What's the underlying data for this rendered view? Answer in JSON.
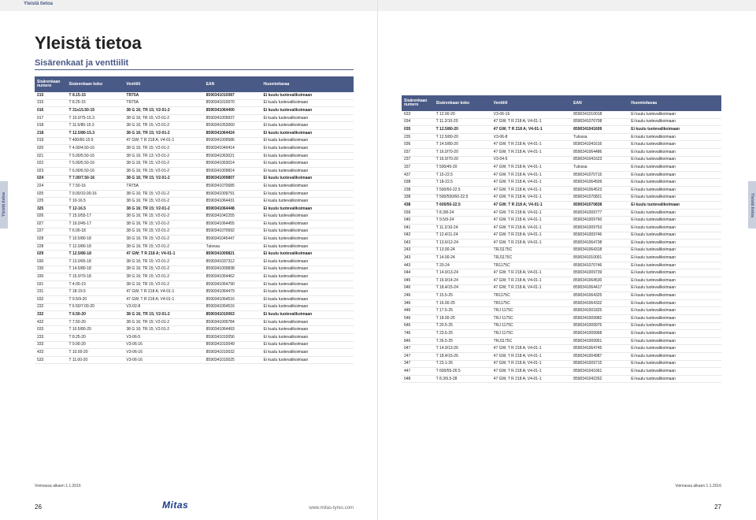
{
  "meta": {
    "topbar": "Yleistä tietoa",
    "title": "Yleistä tietoa",
    "subtitle": "Sisärenkaat ja venttiilit",
    "side_tab": "Yleistä tietoa",
    "validity": "Voimassa alkaen 1.1.2016",
    "url": "www.mitas-tyres.com",
    "logo": "Mitas",
    "page_left": "26",
    "page_right": "27",
    "colors": {
      "header_bg": "#4a5a86",
      "header_fg": "#ffffff",
      "row_border": "#e8e8e8",
      "topbar_bg": "#f0f0f0",
      "accent": "#4a5a86",
      "side_tab_bg": "#c9cfdd"
    }
  },
  "table": {
    "columns": [
      "Sisärenkaan numero",
      "Sisärenkaan koko",
      "Venttiili",
      "EAN",
      "Huomioitavaa"
    ],
    "col_widths_pct": [
      10,
      18,
      25,
      18,
      29
    ]
  },
  "left_rows": [
    {
      "b": 1,
      "c": [
        "215",
        "T 8.15-15",
        "TR75A",
        "8590341010087",
        "Ei kuulu tuotevalikoimaan"
      ]
    },
    {
      "b": 0,
      "c": [
        "315",
        "T 8.25-15",
        "TR75A",
        "8590341010070",
        "Ei kuulu tuotevalikoimaan"
      ]
    },
    {
      "b": 1,
      "c": [
        "016",
        "T 31x15.50-15",
        "38 G 16; TR 15;      V2-01-2",
        "8590341064400",
        "Ei kuulu tuotevalikoimaan"
      ]
    },
    {
      "b": 0,
      "c": [
        "017",
        "T 10.0/75-15.3",
        "38 G 16; TR 15;      V2-01-2",
        "8590341009937",
        "Ei kuulu tuotevalikoimaan"
      ]
    },
    {
      "b": 0,
      "c": [
        "018",
        "T 11.5/80-15.3",
        "38 G 16; TR 15;      V2-01-2",
        "8590341053060",
        "Ei kuulu tuotevalikoimaan"
      ]
    },
    {
      "b": 1,
      "c": [
        "218",
        "T 12.5/80-15.3",
        "38 G 16; TR 15;      V2-01-2",
        "8590341064424",
        "Ei kuulu tuotevalikoimaan"
      ]
    },
    {
      "b": 0,
      "c": [
        "019",
        "T 400/60-15.5",
        "47 GW; T R 218 A;    V4-01-1",
        "8590341009586",
        "Ei kuulu tuotevalikoimaan"
      ]
    },
    {
      "b": 0,
      "c": [
        "020",
        "T 4.00/4.50-16",
        "38 G 16; TR 15;      V2-01-2",
        "8590341049414",
        "Ei kuulu tuotevalikoimaan"
      ]
    },
    {
      "b": 0,
      "c": [
        "021",
        "T 5.00/5.50-16",
        "38 G 16; TR 13;      V2-01-2",
        "8590341063021",
        "Ei kuulu tuotevalikoimaan"
      ]
    },
    {
      "b": 0,
      "c": [
        "022",
        "T 5.00/5.50-16",
        "38 G 16; TR 15;      V2-01-2",
        "8590341063014",
        "Ei kuulu tuotevalikoimaan"
      ]
    },
    {
      "b": 0,
      "c": [
        "023",
        "T 6.00/6.50-16",
        "38 G 16; TR 15;      V2-01-2",
        "8590341009814",
        "Ei kuulu tuotevalikoimaan"
      ]
    },
    {
      "b": 1,
      "c": [
        "024",
        "T 7.00/7.50-16",
        "38 G 16; TR 15;      V2-01-2",
        "8590341009807",
        "Ei kuulu tuotevalikoimaan"
      ]
    },
    {
      "b": 0,
      "c": [
        "224",
        "T 7.50-16",
        "TR75A",
        "8590341070685",
        "Ei kuulu tuotevalikoimaan"
      ]
    },
    {
      "b": 0,
      "c": [
        "025",
        "T 9.00/10.00-16",
        "38 G 16; TR 15;      V2-01-2",
        "8590341009791",
        "Ei kuulu tuotevalikoimaan"
      ]
    },
    {
      "b": 0,
      "c": [
        "225",
        "T 10-16.5",
        "38 G 16; TR 15;      V2-01-2",
        "8590341064431",
        "Ei kuulu tuotevalikoimaan"
      ]
    },
    {
      "b": 1,
      "c": [
        "325",
        "T 12-16.5",
        "38 G 16; TR 15;      V2-01-2",
        "8590341064448",
        "Ei kuulu tuotevalikoimaan"
      ]
    },
    {
      "b": 0,
      "c": [
        "026",
        "T 15.0/55-17",
        "38 G 16; TR 15;      V2-01-2",
        "8590341042255",
        "Ei kuulu tuotevalikoimaan"
      ]
    },
    {
      "b": 0,
      "c": [
        "027",
        "T 19.0/45-17",
        "38 G 16; TR 15;      V2-01-2",
        "8590341064455",
        "Ei kuulu tuotevalikoimaan"
      ]
    },
    {
      "b": 0,
      "c": [
        "227",
        "T 6.00-18",
        "38 G 16; TR 15;      V2-01-2",
        "8590341070692",
        "Ei kuulu tuotevalikoimaan"
      ]
    },
    {
      "b": 0,
      "c": [
        "028",
        "T 10.5/80-18",
        "38 G 16; TR 15;      V2-01-2",
        "8590341045447",
        "Ei kuulu tuotevalikoimaan"
      ]
    },
    {
      "b": 0,
      "c": [
        "228",
        "T 12.0/80-18",
        "38 G 16; TR 15;      V2-01-2",
        "Tulossa",
        "Ei kuulu tuotevalikoimaan"
      ]
    },
    {
      "b": 1,
      "c": [
        "029",
        "T 12.5/80-18",
        "47 GW; T R 218 A;    V4-01-1",
        "8590341009821",
        "Ei kuulu tuotevalikoimaan"
      ]
    },
    {
      "b": 0,
      "c": [
        "030",
        "T 13.0/65-18",
        "38 G 16; TR 15;      V2-01-2",
        "8590341037312",
        "Ei kuulu tuotevalikoimaan"
      ]
    },
    {
      "b": 0,
      "c": [
        "230",
        "T 14.5/80-18",
        "38 G 16; TR 15;      V2-01-2",
        "8590341009838",
        "Ei kuulu tuotevalikoimaan"
      ]
    },
    {
      "b": 0,
      "c": [
        "330",
        "T 15.0/70-18",
        "38 G 16; TR 15;      V2-01-2",
        "8590341064462",
        "Ei kuulu tuotevalikoimaan"
      ]
    },
    {
      "b": 0,
      "c": [
        "031",
        "T 4.00-19",
        "38 G 16; TR 15;      V2-01-2",
        "8590341064790",
        "Ei kuulu tuotevalikoimaan"
      ]
    },
    {
      "b": 0,
      "c": [
        "231",
        "T 18-19.5",
        "47 GW; T R 218 A;    V4-01-1",
        "8590341064479",
        "Ei kuulu tuotevalikoimaan"
      ]
    },
    {
      "b": 0,
      "c": [
        "032",
        "T 9.5/9-20",
        "47 GW; T R 218 A;    V4-01-1",
        "8590341064516",
        "Ei kuulu tuotevalikoimaan"
      ]
    },
    {
      "b": 0,
      "c": [
        "232",
        "T 6.50/7.00-20",
        "V3-02-8",
        "8590341064516",
        "Ei kuulu tuotevalikoimaan"
      ]
    },
    {
      "b": 1,
      "c": [
        "332",
        "T 6.50-20",
        "38 G 16; TR 15;      V2-01-2",
        "8590341010063",
        "Ei kuulu tuotevalikoimaan"
      ]
    },
    {
      "b": 0,
      "c": [
        "432",
        "T 7.50-20",
        "38 G 16; TR 15;      V2-01-2",
        "8590341009784",
        "Ei kuulu tuotevalikoimaan"
      ]
    },
    {
      "b": 0,
      "c": [
        "033",
        "T 10.5/80-20",
        "38 G 16; TR 15;      V2-01-2",
        "8590341064493",
        "Ei kuulu tuotevalikoimaan"
      ]
    },
    {
      "b": 0,
      "c": [
        "233",
        "T 8.25-20",
        "V3-06-5",
        "8590341010056",
        "Ei kuulu tuotevalikoimaan"
      ]
    },
    {
      "b": 0,
      "c": [
        "333",
        "T 9.00-20",
        "V3-06-16",
        "8590341010049",
        "Ei kuulu tuotevalikoimaan"
      ]
    },
    {
      "b": 0,
      "c": [
        "433",
        "T 10.00-20",
        "V3-06-16",
        "8590341010032",
        "Ei kuulu tuotevalikoimaan"
      ]
    },
    {
      "b": 0,
      "c": [
        "533",
        "T 11.00-20",
        "V3-06-16",
        "8590341010025",
        "Ei kuulu tuotevalikoimaan"
      ]
    }
  ],
  "right_rows": [
    {
      "b": 0,
      "c": [
        "633",
        "T 12.00-20",
        "V3-06-16",
        "8590341010018",
        "Ei kuulu tuotevalikoimaan"
      ]
    },
    {
      "b": 0,
      "c": [
        "034",
        "T 11.2/10-20",
        "47 GW; T R 218 A;    V4-01-1",
        "8590341070708",
        "Ei kuulu tuotevalikoimaan"
      ]
    },
    {
      "b": 1,
      "c": [
        "035",
        "T 12.5/80-20",
        "47 GW; T R 218 A;    V4-01-1",
        "8590341041609",
        "Ei kuulu tuotevalikoimaan"
      ]
    },
    {
      "b": 0,
      "c": [
        "235",
        "T 12.5/80-20",
        "V3-06-8",
        "Tulossa",
        "Ei kuulu tuotevalikoimaan"
      ]
    },
    {
      "b": 0,
      "c": [
        "036",
        "T 14.5/80-20",
        "47 GW; T R 218 A;    V4-01-1",
        "8590341041616",
        "Ei kuulu tuotevalikoimaan"
      ]
    },
    {
      "b": 0,
      "c": [
        "037",
        "T 16.0/70-20",
        "47 GW; T R 218 A;    V4-01-1",
        "8590341064486",
        "Ei kuulu tuotevalikoimaan"
      ]
    },
    {
      "b": 0,
      "c": [
        "237",
        "T 16.0/70-20",
        "V3-04-5",
        "8590341041623",
        "Ei kuulu tuotevalikoimaan"
      ]
    },
    {
      "b": 0,
      "c": [
        "337",
        "T 500/45-20",
        "47 GW; T R 218 A;    V4-01-1",
        "Tulossa",
        "Ei kuulu tuotevalikoimaan"
      ]
    },
    {
      "b": 0,
      "c": [
        "437",
        "T 15-22.5",
        "47 GW; T R 218 A;    V4-01-1",
        "8590341070715",
        "Ei kuulu tuotevalikoimaan"
      ]
    },
    {
      "b": 0,
      "c": [
        "038",
        "T 18-22.5",
        "47 GW; T R 218 A;    V4-01-1",
        "8590341064509",
        "Ei kuulu tuotevalikoimaan"
      ]
    },
    {
      "b": 0,
      "c": [
        "238",
        "T 500/60-22.5",
        "47 GW; T R 218 A;    V4-01-1",
        "8590341064523",
        "Ei kuulu tuotevalikoimaan"
      ]
    },
    {
      "b": 0,
      "c": [
        "338",
        "T 500/550/60-22.5",
        "47 GW; T R 218 A;    V4-01-1",
        "8590341070821",
        "Ei kuulu tuotevalikoimaan"
      ]
    },
    {
      "b": 1,
      "c": [
        "438",
        "T 600/50-22.5",
        "47 GW; T R 218 A;    V4-01-1",
        "8590341070838",
        "Ei kuulu tuotevalikoimaan"
      ]
    },
    {
      "b": 0,
      "c": [
        "039",
        "T 8.3/8-24",
        "47 GW; T R 218 A;    V4-01-1",
        "8590341009777",
        "Ei kuulu tuotevalikoimaan"
      ]
    },
    {
      "b": 0,
      "c": [
        "040",
        "T 9.5/9-24",
        "47 GW; T R 218 A;    V4-01-1",
        "8590341009760",
        "Ei kuulu tuotevalikoimaan"
      ]
    },
    {
      "b": 0,
      "c": [
        "041",
        "T 11.2/10-24",
        "47 GW; T R 218 A;    V4-01-1",
        "8590341009753",
        "Ei kuulu tuotevalikoimaan"
      ]
    },
    {
      "b": 0,
      "c": [
        "042",
        "T 12.4/11-24",
        "47 GW; T R 218 A;    V4-01-1",
        "8590341009746",
        "Ei kuulu tuotevalikoimaan"
      ]
    },
    {
      "b": 0,
      "c": [
        "043",
        "T 13.6/12-24",
        "47 GW; T R 218 A;    V4-01-1",
        "8590341064738",
        "Ei kuulu tuotevalikoimaan"
      ]
    },
    {
      "b": 0,
      "c": [
        "243",
        "T 13.00-24",
        "TRJ1175C",
        "8590341064318",
        "Ei kuulu tuotevalikoimaan"
      ]
    },
    {
      "b": 0,
      "c": [
        "343",
        "T 14.00-24",
        "TRJ1175C",
        "8590341010001",
        "Ei kuulu tuotevalikoimaan"
      ]
    },
    {
      "b": 0,
      "c": [
        "443",
        "T 20-24",
        "TR1175C",
        "8590341070746",
        "Ei kuulu tuotevalikoimaan"
      ]
    },
    {
      "b": 0,
      "c": [
        "044",
        "T 14.9/13-24",
        "47 GW; T R 218 A;    V4-01-1",
        "8590341009739",
        "Ei kuulu tuotevalikoimaan"
      ]
    },
    {
      "b": 0,
      "c": [
        "045",
        "T 16.9/14-24",
        "47 GW; T R 218 A;    V4-01-1",
        "8590341064530",
        "Ei kuulu tuotevalikoimaan"
      ]
    },
    {
      "b": 0,
      "c": [
        "046",
        "T 18.4/15-24",
        "47 GW; T R 218 A;    V4-01-1",
        "8590341064417",
        "Ei kuulu tuotevalikoimaan"
      ]
    },
    {
      "b": 0,
      "c": [
        "246",
        "T 15.5-25",
        "TR1175C",
        "8590341064325",
        "Ei kuulu tuotevalikoimaan"
      ]
    },
    {
      "b": 0,
      "c": [
        "346",
        "T 16.00-25",
        "TR1175C",
        "8590341064332",
        "Ei kuulu tuotevalikoimaan"
      ]
    },
    {
      "b": 0,
      "c": [
        "446",
        "T 17.5-25",
        "TRJ 1175C",
        "8590341001825",
        "Ei kuulu tuotevalikoimaan"
      ]
    },
    {
      "b": 0,
      "c": [
        "546",
        "T 18.00-25",
        "TRJ 1175C",
        "8590341009982",
        "Ei kuulu tuotevalikoimaan"
      ]
    },
    {
      "b": 0,
      "c": [
        "646",
        "T 20.5-25",
        "TRJ 1175C",
        "8590341009975",
        "Ei kuulu tuotevalikoimaan"
      ]
    },
    {
      "b": 0,
      "c": [
        "746",
        "T 23.5-25",
        "TRJ 1175C",
        "8590341009968",
        "Ei kuulu tuotevalikoimaan"
      ]
    },
    {
      "b": 0,
      "c": [
        "846",
        "T 26.5-25",
        "TRJ1175C",
        "8590341009951",
        "Ei kuulu tuotevalikoimaan"
      ]
    },
    {
      "b": 0,
      "c": [
        "047",
        "T 14.9/13-26",
        "47 GW; T R 218 A;    V4-01-1",
        "8590341064745",
        "Ei kuulu tuotevalikoimaan"
      ]
    },
    {
      "b": 0,
      "c": [
        "247",
        "T 18.4/15-26",
        "47 GW; T R 218 A;    V4-01-1",
        "8590341004987",
        "Ei kuulu tuotevalikoimaan"
      ]
    },
    {
      "b": 0,
      "c": [
        "347",
        "T 23.1-26",
        "47 GW; T R 218 A;    V4-01-1",
        "8590341009715",
        "Ei kuulu tuotevalikoimaan"
      ]
    },
    {
      "b": 0,
      "c": [
        "447",
        "T 600/55-26.5",
        "47 GW; T R 218 A;    V4-01-1",
        "8590341041661",
        "Ei kuulu tuotevalikoimaan"
      ]
    },
    {
      "b": 0,
      "c": [
        "048",
        "T 8.3/9.5-28",
        "47 GW; T R 218 A;    V4-01-1",
        "8590341042262",
        "Ei kuulu tuotevalikoimaan"
      ]
    }
  ]
}
